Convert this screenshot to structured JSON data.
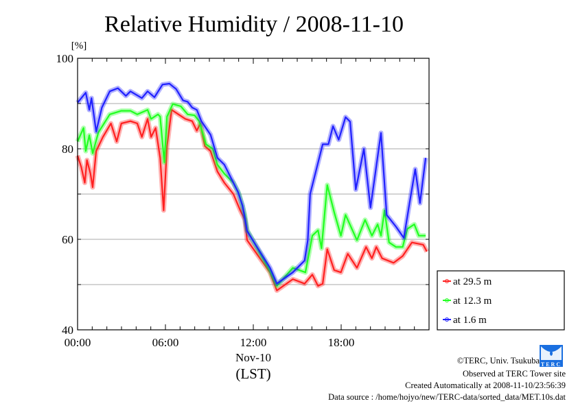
{
  "chart_data": {
    "type": "line",
    "title": "Relative Humidity / 2008-11-10",
    "ylabel": "[%]",
    "xlabel": "(LST)",
    "x_date_label": "Nov-10",
    "ylim": [
      40,
      100
    ],
    "xlim_hours": [
      0,
      24
    ],
    "y_ticks": [
      40,
      60,
      80,
      100
    ],
    "y_gridlines": [
      50,
      60,
      70,
      80,
      90
    ],
    "x_ticks": [
      {
        "h": 0,
        "label": "00:00"
      },
      {
        "h": 6,
        "label": "06:00"
      },
      {
        "h": 12,
        "label": "12:00"
      },
      {
        "h": 18,
        "label": "18:00"
      }
    ],
    "grid": true,
    "legend_position": "bottom-right outside",
    "series": [
      {
        "name": "at 29.5 m",
        "color": "#ff2020",
        "points": [
          [
            0,
            78.5
          ],
          [
            0.25,
            76
          ],
          [
            0.49,
            72.5
          ],
          [
            0.64,
            77.5
          ],
          [
            0.88,
            74.5
          ],
          [
            1.03,
            71.5
          ],
          [
            1.27,
            79.5
          ],
          [
            1.73,
            82.6
          ],
          [
            2.28,
            85.6
          ],
          [
            2.67,
            81.6
          ],
          [
            2.99,
            85.6
          ],
          [
            3.61,
            86.1
          ],
          [
            4.08,
            85.6
          ],
          [
            4.39,
            82.6
          ],
          [
            4.78,
            86.6
          ],
          [
            5.02,
            82.6
          ],
          [
            5.33,
            84.6
          ],
          [
            5.64,
            78
          ],
          [
            5.88,
            66.4
          ],
          [
            6.11,
            80.6
          ],
          [
            6.42,
            88.6
          ],
          [
            6.89,
            87.6
          ],
          [
            7.36,
            86.6
          ],
          [
            7.83,
            86.1
          ],
          [
            8.14,
            84
          ],
          [
            8.38,
            85.6
          ],
          [
            8.69,
            80.6
          ],
          [
            9.08,
            79.5
          ],
          [
            9.55,
            75
          ],
          [
            10.02,
            72.5
          ],
          [
            10.64,
            70
          ],
          [
            11.11,
            66.4
          ],
          [
            11.42,
            64.4
          ],
          [
            11.58,
            59.8
          ],
          [
            13.14,
            52.7
          ],
          [
            13.61,
            48.7
          ],
          [
            14.7,
            51.2
          ],
          [
            15.5,
            50.2
          ],
          [
            16.03,
            52.2
          ],
          [
            16.42,
            49.7
          ],
          [
            16.74,
            50.2
          ],
          [
            17.05,
            57.8
          ],
          [
            17.52,
            53.2
          ],
          [
            17.98,
            52.7
          ],
          [
            18.45,
            56.8
          ],
          [
            19.08,
            53.7
          ],
          [
            19.7,
            58.3
          ],
          [
            20.1,
            55.8
          ],
          [
            20.4,
            58.3
          ],
          [
            20.8,
            55.8
          ],
          [
            21.58,
            54.8
          ],
          [
            22.2,
            56.3
          ],
          [
            22.83,
            59.3
          ],
          [
            23.6,
            58.8
          ],
          [
            23.85,
            57.3
          ]
        ]
      },
      {
        "name": "at 12.3 m",
        "color": "#20ff20",
        "points": [
          [
            0,
            81.6
          ],
          [
            0.41,
            84.6
          ],
          [
            0.56,
            79.5
          ],
          [
            0.8,
            83
          ],
          [
            1.03,
            79
          ],
          [
            1.42,
            83.6
          ],
          [
            2.2,
            87.6
          ],
          [
            2.99,
            88.4
          ],
          [
            3.61,
            88.4
          ],
          [
            4.08,
            87.6
          ],
          [
            4.78,
            88.6
          ],
          [
            5.02,
            86.6
          ],
          [
            5.49,
            87.6
          ],
          [
            5.64,
            87.1
          ],
          [
            5.92,
            77
          ],
          [
            6.11,
            87.1
          ],
          [
            6.5,
            89.9
          ],
          [
            7.05,
            89.4
          ],
          [
            7.52,
            87.6
          ],
          [
            7.99,
            87.4
          ],
          [
            8.3,
            86.1
          ],
          [
            8.77,
            81
          ],
          [
            9.24,
            80
          ],
          [
            9.55,
            76.5
          ],
          [
            10.02,
            74.5
          ],
          [
            10.64,
            72.5
          ],
          [
            11.03,
            70
          ],
          [
            11.42,
            65.4
          ],
          [
            11.58,
            62
          ],
          [
            13.14,
            53
          ],
          [
            13.61,
            49.7
          ],
          [
            14.7,
            53.7
          ],
          [
            15.56,
            52.7
          ],
          [
            16.03,
            60.8
          ],
          [
            16.42,
            62
          ],
          [
            16.66,
            58
          ],
          [
            17.05,
            72
          ],
          [
            17.52,
            66
          ],
          [
            17.98,
            60.8
          ],
          [
            18.3,
            65.4
          ],
          [
            19.08,
            59.8
          ],
          [
            19.63,
            64.3
          ],
          [
            20.1,
            60.8
          ],
          [
            20.49,
            63.3
          ],
          [
            20.72,
            60.8
          ],
          [
            20.96,
            66.4
          ],
          [
            21.27,
            59.3
          ],
          [
            21.74,
            58.3
          ],
          [
            22.2,
            58.3
          ],
          [
            22.52,
            62.3
          ],
          [
            22.99,
            63.3
          ],
          [
            23.3,
            60.8
          ],
          [
            23.77,
            60.8
          ]
        ]
      },
      {
        "name": "at 1.6 m",
        "color": "#2020ff",
        "points": [
          [
            0,
            90.2
          ],
          [
            0.56,
            92.4
          ],
          [
            0.8,
            88.6
          ],
          [
            0.95,
            91.2
          ],
          [
            1.27,
            83.8
          ],
          [
            1.66,
            89.1
          ],
          [
            2.2,
            92.7
          ],
          [
            2.75,
            93.4
          ],
          [
            3.3,
            91.7
          ],
          [
            3.61,
            92.7
          ],
          [
            4.39,
            91.2
          ],
          [
            4.78,
            92.7
          ],
          [
            5.25,
            91.4
          ],
          [
            5.8,
            94.2
          ],
          [
            6.27,
            94.4
          ],
          [
            6.73,
            93.2
          ],
          [
            7.2,
            90.7
          ],
          [
            7.52,
            90.4
          ],
          [
            7.83,
            89.1
          ],
          [
            8.14,
            88.6
          ],
          [
            8.45,
            86.1
          ],
          [
            9.08,
            83.1
          ],
          [
            9.55,
            78
          ],
          [
            10.02,
            76.5
          ],
          [
            10.33,
            74.5
          ],
          [
            10.95,
            70.5
          ],
          [
            11.27,
            67.4
          ],
          [
            11.58,
            61.8
          ],
          [
            13.14,
            53.7
          ],
          [
            13.61,
            50.2
          ],
          [
            14.7,
            52.7
          ],
          [
            15.5,
            55.3
          ],
          [
            15.72,
            59.8
          ],
          [
            15.88,
            70
          ],
          [
            16.27,
            75
          ],
          [
            16.74,
            81
          ],
          [
            17.13,
            81
          ],
          [
            17.44,
            85
          ],
          [
            17.83,
            82
          ],
          [
            18.3,
            87
          ],
          [
            18.61,
            86
          ],
          [
            19.0,
            71
          ],
          [
            19.55,
            80
          ],
          [
            20.0,
            67
          ],
          [
            20.72,
            83.5
          ],
          [
            21.11,
            65.4
          ],
          [
            21.74,
            62.8
          ],
          [
            22.28,
            60.3
          ],
          [
            22.67,
            68
          ],
          [
            23.06,
            75.5
          ],
          [
            23.38,
            68
          ],
          [
            23.77,
            78
          ]
        ]
      }
    ]
  },
  "footer": {
    "copyright": "©TERC, Univ. Tsukuba",
    "observed": "Observed at TERC Tower site",
    "created": "Created Automatically at 2008-11-10/23:56:39",
    "source": "Data source : /home/hojyo/new/TERC-data/sorted_data/MET.10s.dat",
    "logo_text": "TERC"
  }
}
